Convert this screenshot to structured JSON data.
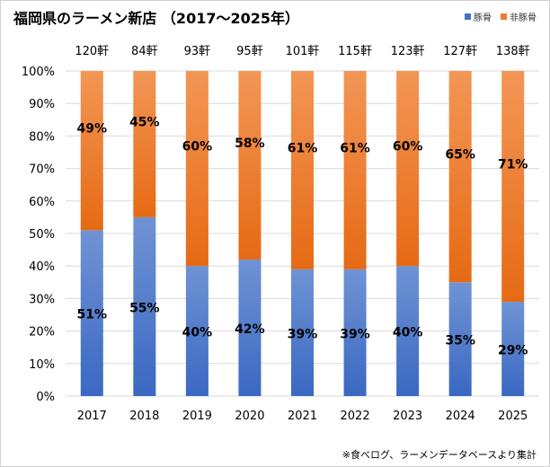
{
  "title": "福岡県のラーメン新店 （2017～2025年）",
  "source": "※食べログ、ラーメンデータベースより集計",
  "colors": {
    "tonkotsu_top": "#6f93d4",
    "tonkotsu_bottom": "#3a68c2",
    "other_top": "#f08a44",
    "other_bottom": "#e86a17"
  },
  "chart_data": {
    "type": "bar",
    "stacked": true,
    "percent": true,
    "categories": [
      "2017",
      "2018",
      "2019",
      "2020",
      "2021",
      "2022",
      "2023",
      "2024",
      "2025"
    ],
    "totals": [
      "120軒",
      "84軒",
      "93軒",
      "95軒",
      "101軒",
      "115軒",
      "123軒",
      "127軒",
      "138軒"
    ],
    "series": [
      {
        "name": "豚骨",
        "values": [
          51,
          55,
          40,
          42,
          39,
          39,
          40,
          35,
          29
        ],
        "labels": [
          "51%",
          "55%",
          "40%",
          "42%",
          "39%",
          "39%",
          "40%",
          "35%",
          "29%"
        ]
      },
      {
        "name": "非豚骨",
        "values": [
          49,
          45,
          60,
          58,
          61,
          61,
          60,
          65,
          71
        ],
        "labels": [
          "49%",
          "45%",
          "60%",
          "58%",
          "61%",
          "61%",
          "60%",
          "65%",
          "71%"
        ]
      }
    ],
    "ylim": [
      0,
      100
    ],
    "yticks": [
      "0%",
      "10%",
      "20%",
      "30%",
      "40%",
      "50%",
      "60%",
      "70%",
      "80%",
      "90%",
      "100%"
    ],
    "grid": true,
    "legend": "top-right"
  }
}
